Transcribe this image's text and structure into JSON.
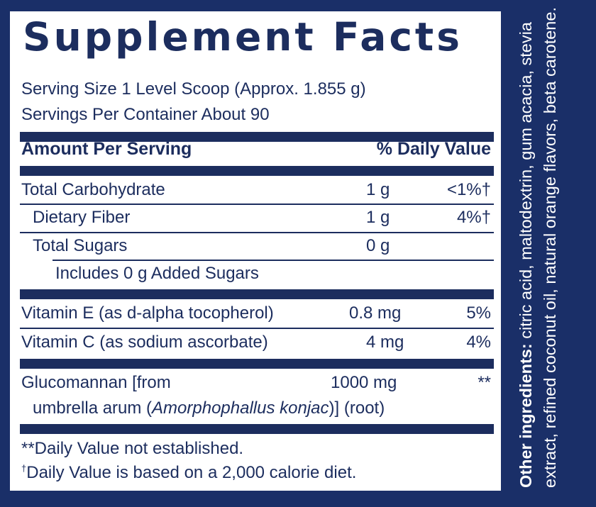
{
  "title": "Supplement Facts",
  "serving_size": "Serving Size 1 Level Scoop (Approx. 1.855 g)",
  "servings_per_container": "Servings Per Container About 90",
  "header": {
    "amount_per_serving": "Amount Per Serving",
    "daily_value": "% Daily Value"
  },
  "rows": [
    {
      "name": "Total Carbohydrate",
      "amount": "1 g",
      "dv": "<1%†"
    },
    {
      "name": "Dietary Fiber",
      "amount": "1 g",
      "dv": "4%†"
    },
    {
      "name": "Total Sugars",
      "amount": "0 g",
      "dv": ""
    },
    {
      "name": "Includes 0 g Added Sugars",
      "amount": "",
      "dv": ""
    },
    {
      "name": "Vitamin E (as d-alpha tocopherol)",
      "amount": "0.8 mg",
      "dv": "5%"
    },
    {
      "name": "Vitamin C (as sodium ascorbate)",
      "amount": "4 mg",
      "dv": "4%"
    }
  ],
  "glucomannan": {
    "line1": "Glucomannan [from",
    "line2_prefix": "umbrella arum (",
    "line2_italic": "Amorphophallus konjac",
    "line2_suffix": ")] (root)",
    "amount": "1000 mg",
    "dv": "**"
  },
  "footnotes": {
    "not_established": "**Daily Value not established.",
    "dagger": "†",
    "calorie": "Daily Value is based on a 2,000 calorie diet."
  },
  "other_ingredients": {
    "label": "Other ingredients:",
    "text": "citric acid, maltodextrin, gum acacia, stevia extract, refined coconut oil, natural orange flavors, beta carotene."
  },
  "colors": {
    "navy": "#1c2d5e",
    "background": "#1a2f68",
    "panel": "#ffffff"
  }
}
